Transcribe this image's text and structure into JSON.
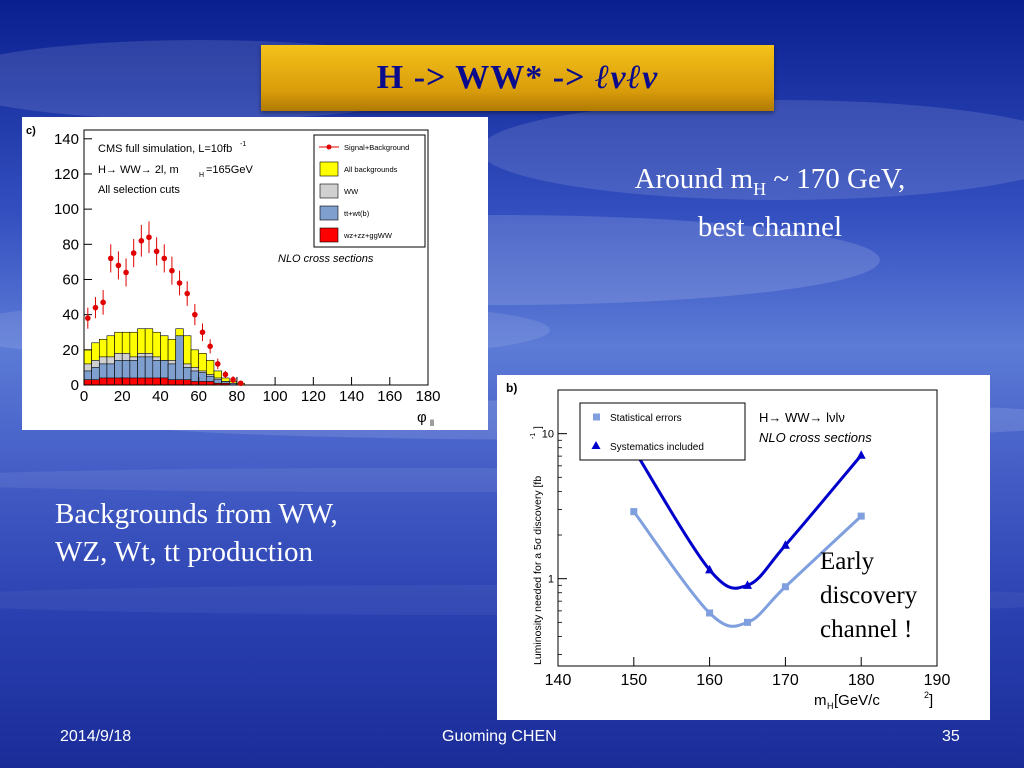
{
  "slide": {
    "title_prefix": "H -> WW* -> ",
    "title_final": "ℓνℓν",
    "text_right_1": "Around m",
    "text_right_sub": "H",
    "text_right_2": " ~ 170 GeV,",
    "text_right_line2": "best channel",
    "text_left_line1": "Backgrounds from WW,",
    "text_left_line2": "WZ, Wt, tt production",
    "annotation": [
      "Early",
      "discovery",
      "channel !"
    ],
    "footer_date": "2014/9/18",
    "footer_author": "Guoming CHEN",
    "footer_page": "35"
  },
  "chart_data": [
    {
      "type": "bar",
      "panel_label": "c)",
      "annotations": [
        "CMS full simulation, L=10fb",
        "-1",
        "H→ WW→ 2l, m",
        "H",
        "=165GeV",
        "All selection cuts",
        "NLO cross sections"
      ],
      "xlabel": "φ",
      "xlabel_sub": "ll",
      "xlim": [
        0,
        180
      ],
      "ylim": [
        0,
        145
      ],
      "xticks": [
        0,
        20,
        40,
        60,
        80,
        100,
        120,
        140,
        160,
        180
      ],
      "yticks": [
        0,
        20,
        40,
        60,
        80,
        100,
        120,
        140
      ],
      "legend": [
        "Signal+Background",
        "All backgrounds",
        "WW",
        "tt+wt(b)",
        "wz+zz+ggWW"
      ],
      "colors": {
        "signal": "#e00000",
        "all_bkg": "#ffff00",
        "ww": "#d0d0d0",
        "tt": "#7f9fcf",
        "other": "#ff0000"
      },
      "bin_width": 4,
      "bin_edges": [
        0,
        4,
        8,
        12,
        16,
        20,
        24,
        28,
        32,
        36,
        40,
        44,
        48,
        52,
        56,
        60,
        64,
        68,
        72,
        76,
        80,
        84,
        88
      ],
      "series": [
        {
          "name": "All backgrounds",
          "values": [
            20,
            24,
            26,
            28,
            30,
            30,
            30,
            32,
            32,
            30,
            28,
            26,
            32,
            28,
            20,
            18,
            14,
            8,
            4,
            2,
            1,
            0
          ]
        },
        {
          "name": "WW",
          "values": [
            12,
            14,
            16,
            16,
            18,
            18,
            16,
            18,
            18,
            16,
            14,
            14,
            14,
            12,
            10,
            8,
            6,
            4,
            2,
            1,
            0,
            0
          ]
        },
        {
          "name": "tt+wt(b)",
          "values": [
            8,
            10,
            12,
            12,
            14,
            14,
            14,
            16,
            16,
            14,
            14,
            12,
            28,
            10,
            8,
            7,
            5,
            3,
            2,
            1,
            0,
            0
          ]
        },
        {
          "name": "wz+zz+ggWW",
          "values": [
            3,
            3,
            4,
            4,
            4,
            4,
            4,
            4,
            4,
            4,
            4,
            3,
            3,
            3,
            2,
            2,
            2,
            1,
            1,
            0,
            0,
            0
          ]
        }
      ],
      "points": {
        "name": "Signal+Background",
        "x": [
          2,
          6,
          10,
          14,
          18,
          22,
          26,
          30,
          34,
          38,
          42,
          46,
          50,
          54,
          58,
          62,
          66,
          70,
          74,
          78,
          82
        ],
        "y": [
          38,
          44,
          47,
          72,
          68,
          64,
          75,
          82,
          84,
          76,
          72,
          65,
          58,
          52,
          40,
          30,
          22,
          12,
          6,
          3,
          1
        ],
        "err": [
          6,
          6,
          7,
          8,
          8,
          8,
          8,
          9,
          9,
          8,
          8,
          8,
          7,
          7,
          6,
          5,
          4,
          3,
          2,
          2,
          1
        ]
      }
    },
    {
      "type": "line",
      "panel_label": "b)",
      "annotations": [
        "H→ WW→ lνlν",
        "NLO cross sections"
      ],
      "xlabel": "m",
      "xlabel_sub": "H",
      "xlabel_rest": " [GeV/c",
      "xlabel_sup": "2",
      "xlabel_end": "]",
      "ylabel": "Luminosity needed for a 5σ discovery [fb",
      "ylabel_sup": "-1",
      "ylabel_end": "]",
      "xlim": [
        140,
        190
      ],
      "ylim": [
        0.25,
        20
      ],
      "yscale": "log",
      "xticks": [
        140,
        150,
        160,
        170,
        180,
        190
      ],
      "yticks": [
        1,
        10
      ],
      "series": [
        {
          "name": "Statistical errors",
          "color": "#7f9fdf",
          "marker": "square",
          "x": [
            150,
            160,
            165,
            170,
            180
          ],
          "y": [
            2.9,
            0.58,
            0.5,
            0.88,
            2.7
          ]
        },
        {
          "name": "Systematics included",
          "color": "#0000cc",
          "marker": "triangle",
          "x": [
            150,
            160,
            165,
            170,
            180
          ],
          "y": [
            7.8,
            1.15,
            0.9,
            1.7,
            7.1
          ]
        }
      ]
    }
  ]
}
